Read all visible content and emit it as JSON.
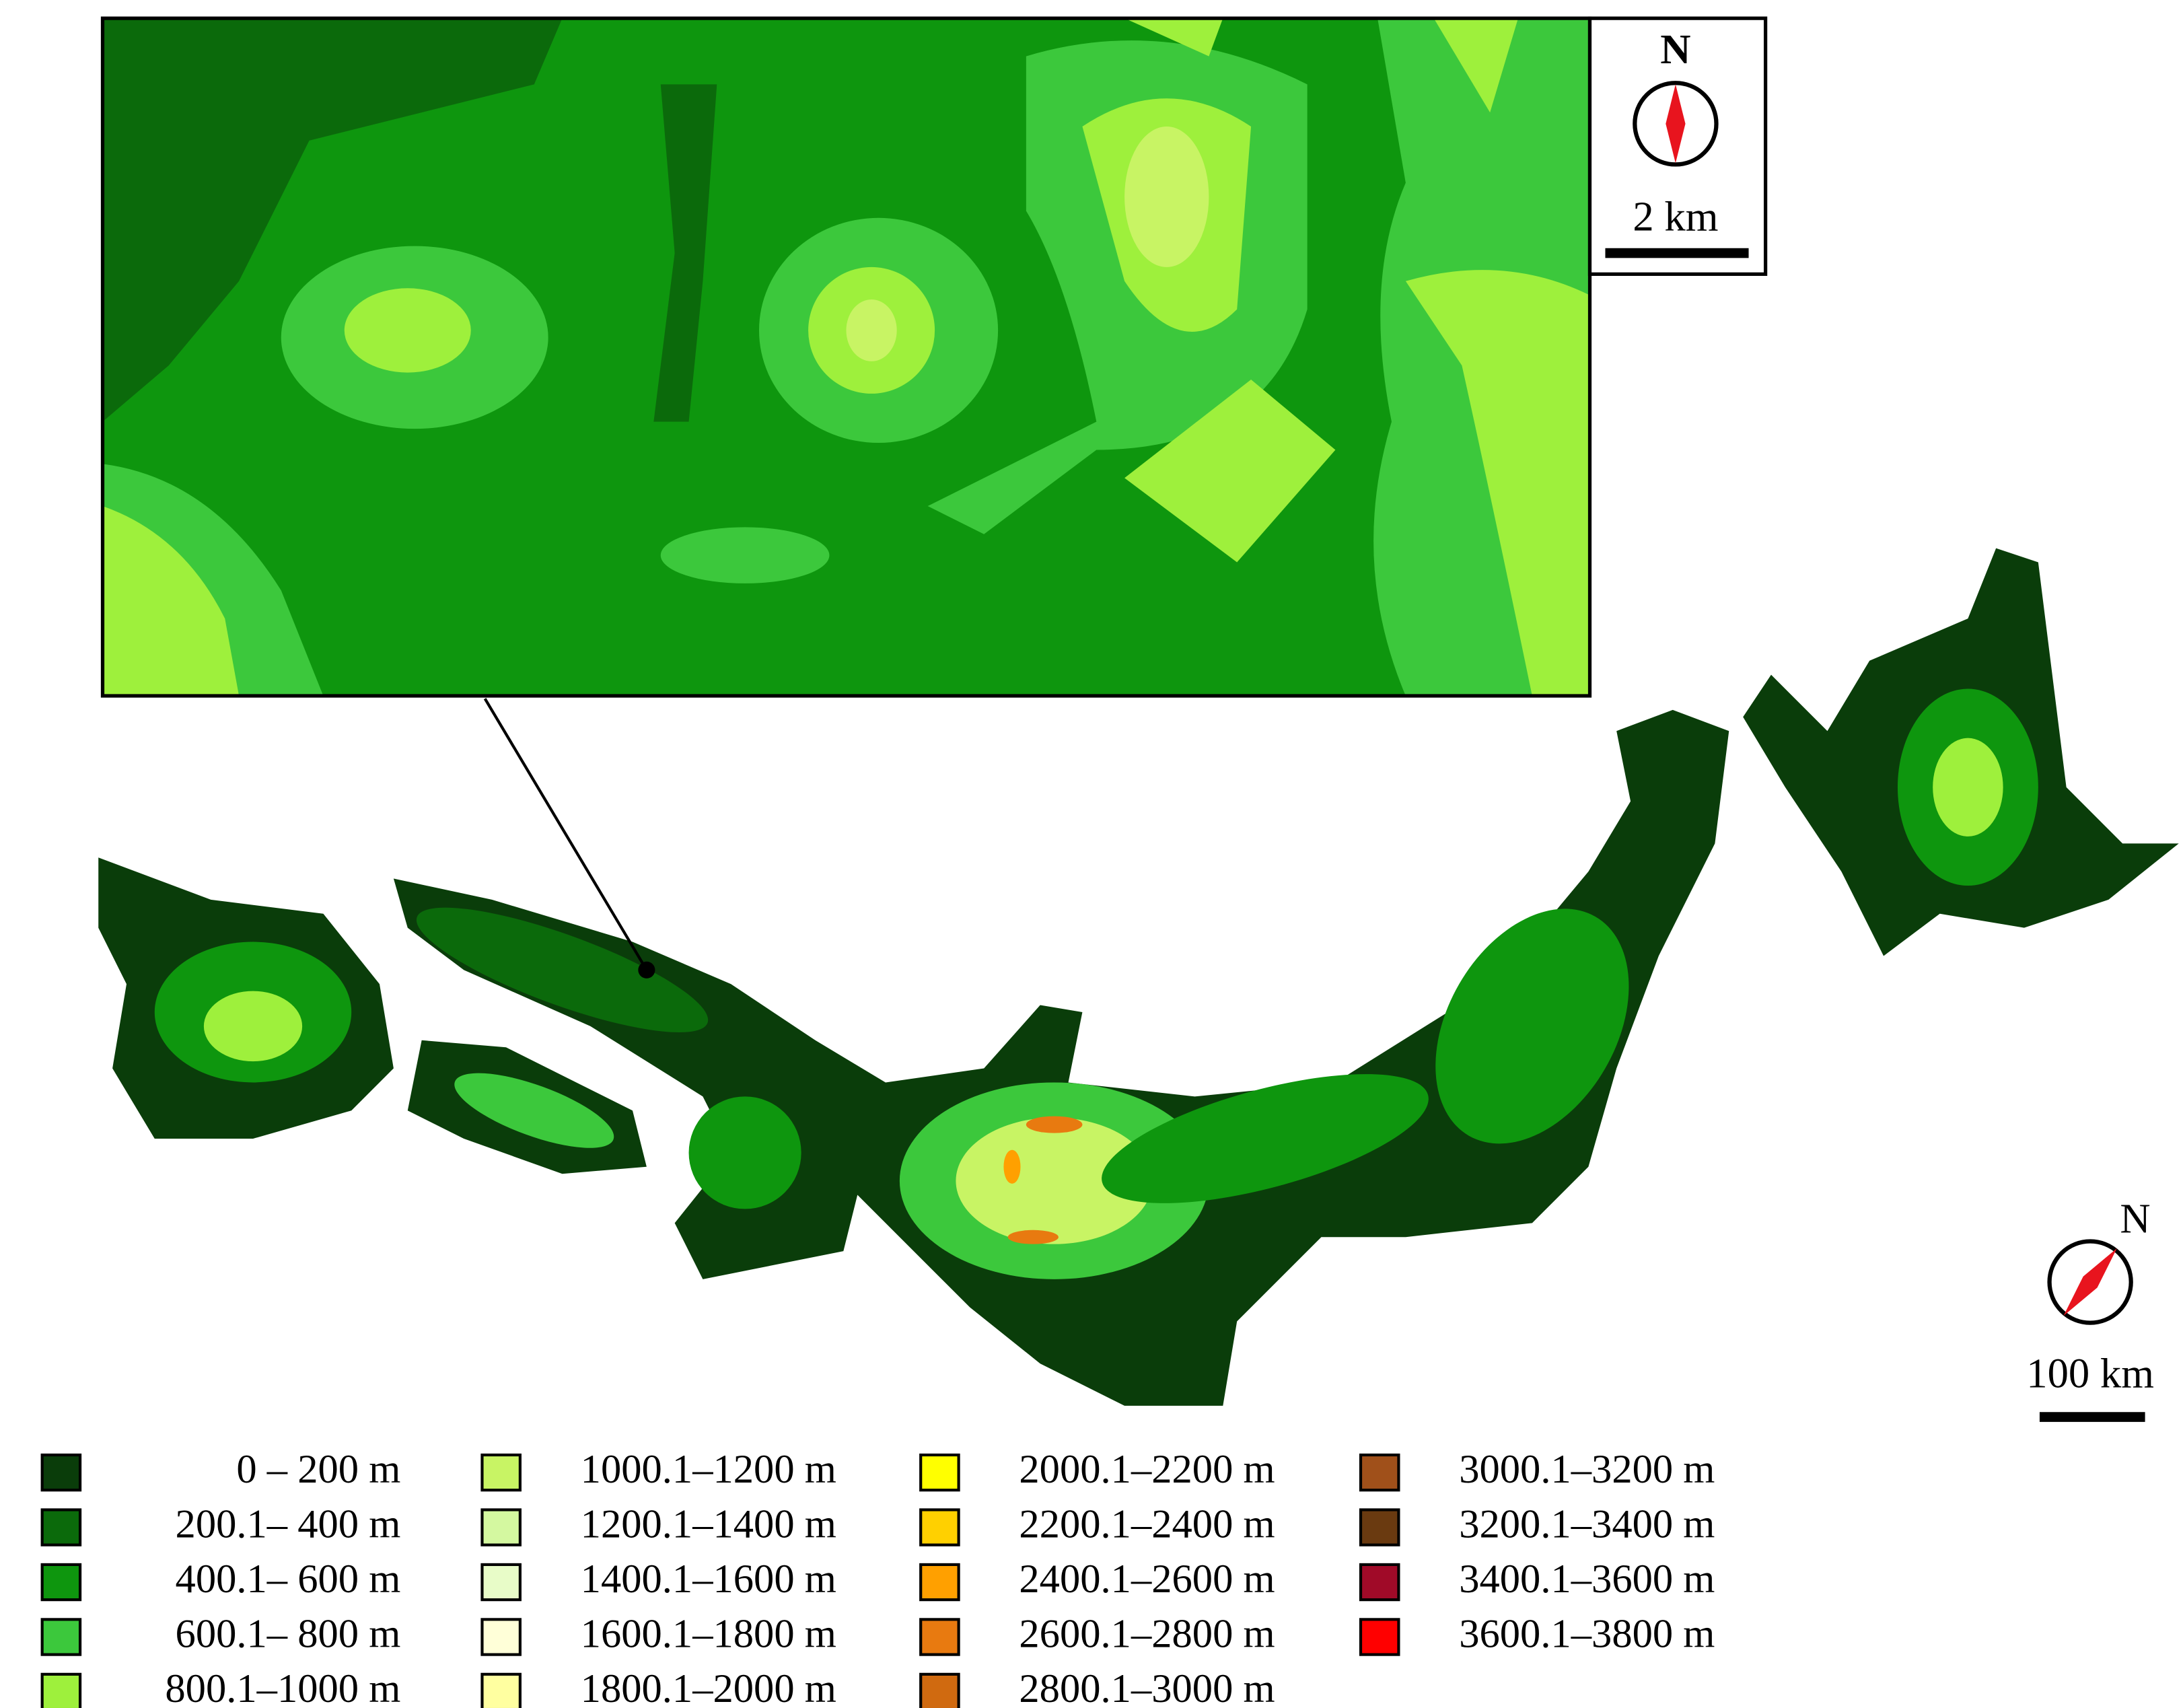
{
  "inset_compass": {
    "north": "N",
    "scale": "2 km"
  },
  "main_compass": {
    "north": "N",
    "scale": "100 km"
  },
  "legend": [
    {
      "label": "0 – 200 m",
      "color": "#0a3d0a"
    },
    {
      "label": "200.1– 400 m",
      "color": "#0b6a0b"
    },
    {
      "label": "400.1– 600 m",
      "color": "#0e960e"
    },
    {
      "label": "600.1– 800 m",
      "color": "#3cc83c"
    },
    {
      "label": "800.1–1000 m",
      "color": "#9ef03c"
    },
    {
      "label": "1000.1–1200 m",
      "color": "#c8f464"
    },
    {
      "label": "1200.1–1400 m",
      "color": "#d4f8a0"
    },
    {
      "label": "1400.1–1600 m",
      "color": "#e8fcc8"
    },
    {
      "label": "1600.1–1800 m",
      "color": "#ffffd8"
    },
    {
      "label": "1800.1–2000 m",
      "color": "#ffffa0"
    },
    {
      "label": "2000.1–2200 m",
      "color": "#ffff00"
    },
    {
      "label": "2200.1–2400 m",
      "color": "#ffd000"
    },
    {
      "label": "2400.1–2600 m",
      "color": "#ffa000"
    },
    {
      "label": "2600.1–2800 m",
      "color": "#e87a10"
    },
    {
      "label": "2800.1–3000 m",
      "color": "#d06a10"
    },
    {
      "label": "3000.1–3200 m",
      "color": "#a0501a"
    },
    {
      "label": "3200.1–3400 m",
      "color": "#6a3a10"
    },
    {
      "label": "3400.1–3600 m",
      "color": "#a00a28"
    },
    {
      "label": "3600.1–3800 m",
      "color": "#ff0000"
    }
  ]
}
